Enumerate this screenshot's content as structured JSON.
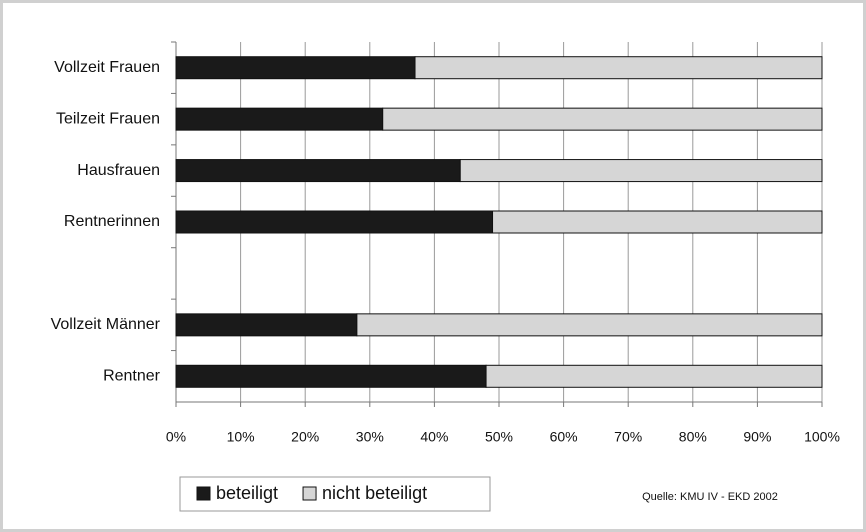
{
  "chart_data": {
    "type": "stacked_barh",
    "categories": [
      "Vollzeit Frauen",
      "Teilzeit Frauen",
      "Hausfrauen",
      "Rentnerinnen",
      null,
      "Vollzeit Männer",
      "Rentner"
    ],
    "series": [
      {
        "name": "beteiligt",
        "color": "#1a1a1a",
        "values": [
          37,
          32,
          44,
          49,
          null,
          28,
          48
        ]
      },
      {
        "name": "nicht beteiligt",
        "color": "#d6d6d6",
        "values": [
          63,
          68,
          56,
          51,
          null,
          72,
          52
        ]
      }
    ],
    "xlim": [
      0,
      100
    ],
    "xticks": [
      {
        "value": 0,
        "label": "0%"
      },
      {
        "value": 10,
        "label": "10%"
      },
      {
        "value": 20,
        "label": "20%"
      },
      {
        "value": 30,
        "label": "30%"
      },
      {
        "value": 40,
        "label": "40%"
      },
      {
        "value": 50,
        "label": "50%"
      },
      {
        "value": 60,
        "label": "60%"
      },
      {
        "value": 70,
        "label": "70%"
      },
      {
        "value": 80,
        "label": "80%"
      },
      {
        "value": 90,
        "label": "90%"
      },
      {
        "value": 100,
        "label": "100%"
      }
    ],
    "grid": true,
    "legend": "bottom",
    "source": "Quelle: KMU IV - EKD 2002"
  }
}
